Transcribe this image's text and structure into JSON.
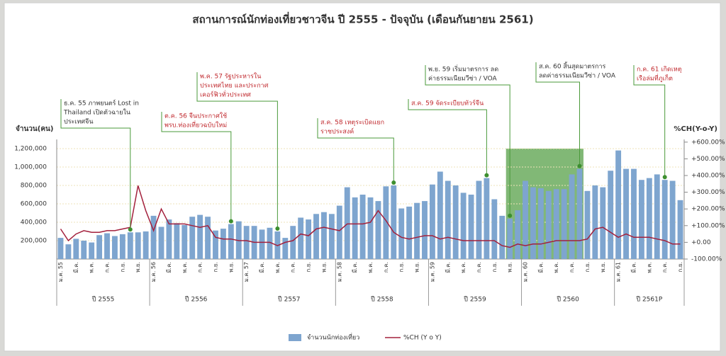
{
  "chart_data": {
    "type": "bar",
    "title": "สถานการณ์นักท่องเที่ยวชาวจีน ปี 2555 - ปัจจุบัน (เดือนกันยายน 2561)",
    "y_label": "จำนวน(คน)",
    "y2_label": "%CH(Y-o-Y)",
    "categories": [
      "ม.ค. 55",
      null,
      "มี.ค.",
      null,
      "พ.ค.",
      null,
      "ก.ค.",
      null,
      "ก.ย.",
      null,
      "พ.ย.",
      null,
      "ม.ค. 56",
      null,
      "มี.ค.",
      null,
      "พ.ค.",
      null,
      "ก.ค.",
      null,
      "ก.ย.",
      null,
      "พ.ย.",
      null,
      "ม.ค. 57",
      null,
      "มี.ค.",
      null,
      "พ.ค.",
      null,
      "ก.ค.",
      null,
      "ก.ย.",
      null,
      "พ.ย.",
      null,
      "ม.ค. 58",
      null,
      "มี.ค.",
      null,
      "พ.ค.",
      null,
      "ก.ค.",
      null,
      "ก.ย.",
      null,
      "พ.ย.",
      null,
      "ม.ค. 59",
      null,
      "มี.ค.",
      null,
      "พ.ค.",
      null,
      "ก.ค.",
      null,
      "ก.ย.",
      null,
      "พ.ย.",
      null,
      "ม.ค. 60",
      null,
      "มี.ค.",
      null,
      "พ.ค.",
      null,
      "ก.ค.",
      null,
      "ก.ย.",
      null,
      "พ.ย.",
      null,
      "ม.ค. 61",
      null,
      "มี.ค.",
      null,
      "พ.ค.",
      null,
      "ก.ค.",
      null,
      "ก.ย."
    ],
    "year_labels": [
      "ปี 2555",
      "ปี 2556",
      "ปี 2557",
      "ปี 2558",
      "ปี 2559",
      "ปี 2560",
      "ปี 2561P"
    ],
    "series": [
      {
        "name": "จำนวนนักท่องเที่ยว",
        "type": "bar",
        "color": "#7ea5cf",
        "values": [
          230000,
          160000,
          220000,
          200000,
          180000,
          260000,
          280000,
          250000,
          270000,
          290000,
          290000,
          300000,
          470000,
          350000,
          430000,
          390000,
          370000,
          460000,
          480000,
          460000,
          310000,
          330000,
          380000,
          410000,
          360000,
          360000,
          320000,
          340000,
          300000,
          230000,
          360000,
          450000,
          430000,
          490000,
          510000,
          490000,
          580000,
          780000,
          670000,
          700000,
          670000,
          630000,
          790000,
          800000,
          550000,
          570000,
          610000,
          630000,
          810000,
          950000,
          850000,
          800000,
          720000,
          700000,
          850000,
          880000,
          650000,
          470000,
          440000,
          530000,
          850000,
          780000,
          770000,
          740000,
          760000,
          760000,
          920000,
          980000,
          740000,
          800000,
          780000,
          960000,
          1180000,
          980000,
          980000,
          860000,
          880000,
          920000,
          860000,
          850000,
          640000
        ]
      },
      {
        "name": "%CH (Y o Y)",
        "type": "line",
        "axis": "y2",
        "color": "#a3203c",
        "values": [
          80,
          10,
          50,
          70,
          60,
          60,
          70,
          70,
          80,
          90,
          340,
          190,
          70,
          200,
          110,
          110,
          110,
          100,
          90,
          100,
          30,
          20,
          20,
          10,
          10,
          0,
          0,
          0,
          -20,
          0,
          10,
          50,
          40,
          80,
          90,
          80,
          70,
          110,
          110,
          110,
          120,
          190,
          130,
          60,
          30,
          20,
          30,
          40,
          40,
          20,
          30,
          20,
          10,
          10,
          10,
          10,
          10,
          -20,
          -30,
          -10,
          -20,
          -10,
          -10,
          0,
          10,
          10,
          10,
          10,
          20,
          80,
          90,
          60,
          30,
          50,
          30,
          30,
          30,
          20,
          10,
          -10,
          -10
        ]
      }
    ],
    "ylim": [
      0,
      1300000
    ],
    "yticks": [
      {
        "value": 200000,
        "label": "200,000"
      },
      {
        "value": 400000,
        "label": "400,000"
      },
      {
        "value": 600000,
        "label": "600,000"
      },
      {
        "value": 800000,
        "label": "800,000"
      },
      {
        "value": 1000000,
        "label": "1,000,000"
      },
      {
        "value": 1200000,
        "label": "1,200,000"
      }
    ],
    "y2lim": [
      -100,
      650
    ],
    "y2ticks": [
      {
        "value": -100,
        "label": "-100.00%"
      },
      {
        "value": 0,
        "label": "+0.00"
      },
      {
        "value": 100,
        "label": "+100.00%"
      },
      {
        "value": 200,
        "label": "+200.00%"
      },
      {
        "value": 300,
        "label": "+300.00%"
      },
      {
        "value": 400,
        "label": "+400.00%"
      },
      {
        "value": 500,
        "label": "+500.00%"
      },
      {
        "value": 600,
        "label": "+600.00%"
      }
    ],
    "grid": true,
    "legend": "bottom",
    "annotations": [
      {
        "color": "#333333",
        "lines": [
          "ธ.ค. 55 ภาพยนตร์ Lost in",
          "Thailand เปิดตัวฉายใน",
          "ประเทศจีน"
        ]
      },
      {
        "color": "#c0282d",
        "lines": [
          "ต.ค. 56 จีนประกาศใช้",
          "พรบ.ท่องเที่ยวฉบับใหม่"
        ]
      },
      {
        "color": "#c0282d",
        "lines": [
          "พ.ค. 57 รัฐประหารใน",
          "ประเทศไทย และประกาศ",
          "เคอร์ฟิวทั่วประเทศ"
        ]
      },
      {
        "color": "#c0282d",
        "lines": [
          "ส.ค. 58 เหตุระเบิดแยก",
          "ราชประสงค์"
        ]
      },
      {
        "color": "#c0282d",
        "lines": [
          "ส.ค. 59 จัดระเบียบทัวร์จีน"
        ]
      },
      {
        "color": "#333333",
        "lines": [
          "พ.ย. 59 เริ่มมาตรการ ลด",
          "ค่าธรรมเนียมวีซ่า / VOA"
        ]
      },
      {
        "color": "#333333",
        "lines": [
          "ส.ค. 60 สิ้นสุดมาตรการ",
          "ลดค่าธรรมเนียมวีซ่า / VOA"
        ]
      },
      {
        "color": "#c0282d",
        "lines": [
          "ก.ค. 61 เกิดเหตุ",
          "เรือล่มที่ภูเก็ต"
        ]
      }
    ]
  }
}
